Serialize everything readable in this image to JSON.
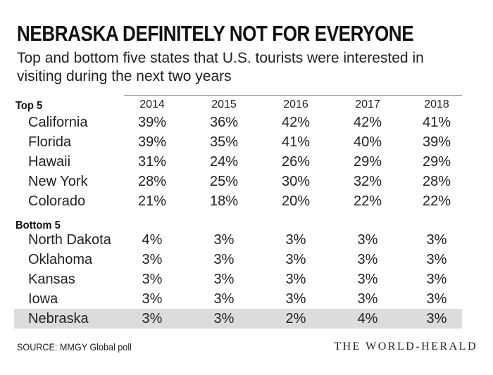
{
  "header": {
    "title": "NEBRASKA DEFINITELY NOT FOR EVERYONE",
    "subtitle": "Top and bottom five states that U.S. tourists were interested in visiting during the next two years"
  },
  "footer": {
    "source": "SOURCE: MMGY Global poll",
    "brand": "THE WORLD-HERALD"
  },
  "colors": {
    "highlight_row": "#dcdcdc",
    "rule": "#9a9a9a"
  },
  "chart_data": {
    "type": "table",
    "title": "NEBRASKA DEFINITELY NOT FOR EVERYONE",
    "subtitle": "Top and bottom five states that U.S. tourists were interested in visiting during the next two years",
    "columns": [
      "2014",
      "2015",
      "2016",
      "2017",
      "2018"
    ],
    "sections": [
      {
        "label": "Top 5",
        "rows": [
          {
            "state": "California",
            "values": [
              "39%",
              "36%",
              "42%",
              "42%",
              "41%"
            ]
          },
          {
            "state": "Florida",
            "values": [
              "39%",
              "35%",
              "41%",
              "40%",
              "39%"
            ]
          },
          {
            "state": "Hawaii",
            "values": [
              "31%",
              "24%",
              "26%",
              "29%",
              "29%"
            ]
          },
          {
            "state": "New York",
            "values": [
              "28%",
              "25%",
              "30%",
              "32%",
              "28%"
            ]
          },
          {
            "state": "Colorado",
            "values": [
              "21%",
              "18%",
              "20%",
              "22%",
              "22%"
            ]
          }
        ]
      },
      {
        "label": "Bottom 5",
        "rows": [
          {
            "state": "North Dakota",
            "values": [
              "4%",
              "3%",
              "3%",
              "3%",
              "3%"
            ]
          },
          {
            "state": "Oklahoma",
            "values": [
              "3%",
              "3%",
              "3%",
              "3%",
              "3%"
            ]
          },
          {
            "state": "Kansas",
            "values": [
              "3%",
              "3%",
              "3%",
              "3%",
              "3%"
            ]
          },
          {
            "state": "Iowa",
            "values": [
              "3%",
              "3%",
              "3%",
              "3%",
              "3%"
            ]
          },
          {
            "state": "Nebraska",
            "values": [
              "3%",
              "3%",
              "2%",
              "4%",
              "3%"
            ],
            "highlighted": true
          }
        ]
      }
    ]
  }
}
